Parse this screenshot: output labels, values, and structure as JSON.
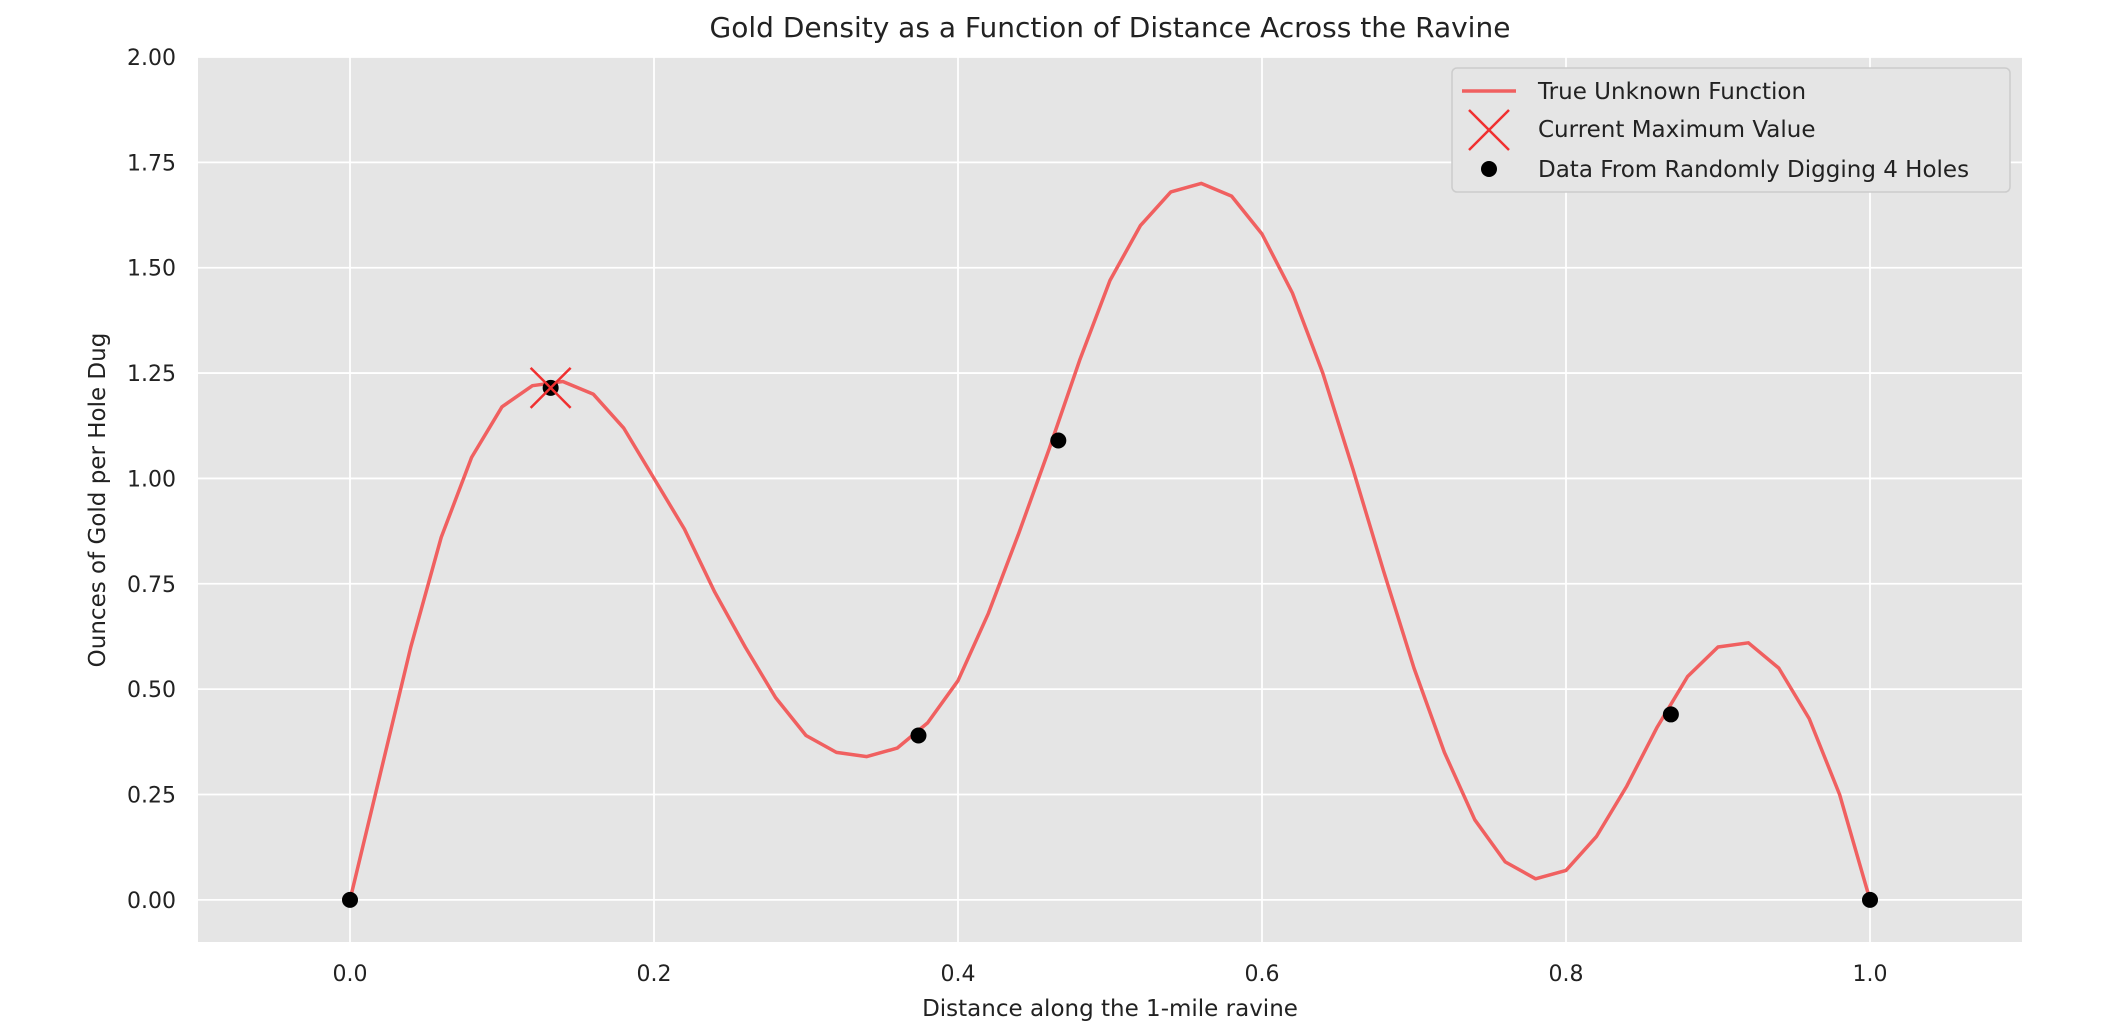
{
  "chart_data": {
    "type": "line",
    "title": "Gold Density as a Function of Distance Across the Ravine",
    "xlabel": "Distance along the 1-mile ravine",
    "ylabel": "Ounces of Gold per Hole Dug",
    "xlim": [
      -0.1,
      1.1
    ],
    "ylim": [
      -0.1,
      2.0
    ],
    "grid": true,
    "legend_position": "top-right",
    "x_ticks": [
      "0.0",
      "0.2",
      "0.4",
      "0.6",
      "0.8",
      "1.0"
    ],
    "x_tick_values": [
      0.0,
      0.2,
      0.4,
      0.6,
      0.8,
      1.0
    ],
    "y_ticks": [
      "0.00",
      "0.25",
      "0.50",
      "0.75",
      "1.00",
      "1.25",
      "1.50",
      "1.75",
      "2.00"
    ],
    "y_tick_values": [
      0.0,
      0.25,
      0.5,
      0.75,
      1.0,
      1.25,
      1.5,
      1.75,
      2.0
    ],
    "series": [
      {
        "name": "True Unknown Function",
        "kind": "line",
        "color": "#f06060",
        "x": [
          0.0,
          0.02,
          0.04,
          0.06,
          0.08,
          0.1,
          0.12,
          0.14,
          0.16,
          0.18,
          0.2,
          0.22,
          0.24,
          0.26,
          0.28,
          0.3,
          0.32,
          0.34,
          0.36,
          0.38,
          0.4,
          0.42,
          0.44,
          0.46,
          0.48,
          0.5,
          0.52,
          0.54,
          0.56,
          0.58,
          0.6,
          0.62,
          0.64,
          0.66,
          0.68,
          0.7,
          0.72,
          0.74,
          0.76,
          0.78,
          0.8,
          0.82,
          0.84,
          0.86,
          0.88,
          0.9,
          0.92,
          0.94,
          0.96,
          0.98,
          1.0
        ],
        "y": [
          0.0,
          0.3,
          0.6,
          0.86,
          1.05,
          1.17,
          1.22,
          1.23,
          1.2,
          1.12,
          1.0,
          0.88,
          0.73,
          0.6,
          0.48,
          0.39,
          0.35,
          0.34,
          0.36,
          0.42,
          0.52,
          0.68,
          0.87,
          1.07,
          1.28,
          1.47,
          1.6,
          1.68,
          1.7,
          1.67,
          1.58,
          1.44,
          1.25,
          1.02,
          0.78,
          0.55,
          0.35,
          0.19,
          0.09,
          0.05,
          0.07,
          0.15,
          0.27,
          0.41,
          0.53,
          0.6,
          0.61,
          0.55,
          0.43,
          0.25,
          0.0
        ]
      },
      {
        "name": "Current Maximum Value",
        "kind": "marker-x",
        "color": "#f03030",
        "x": [
          0.132
        ],
        "y": [
          1.215
        ]
      },
      {
        "name": "Data From Randomly Digging 4 Holes",
        "kind": "scatter",
        "color": "#000000",
        "x": [
          0.0,
          0.132,
          0.374,
          0.466,
          0.869,
          1.0
        ],
        "y": [
          0.0,
          1.215,
          0.39,
          1.09,
          0.44,
          0.0
        ]
      }
    ]
  }
}
